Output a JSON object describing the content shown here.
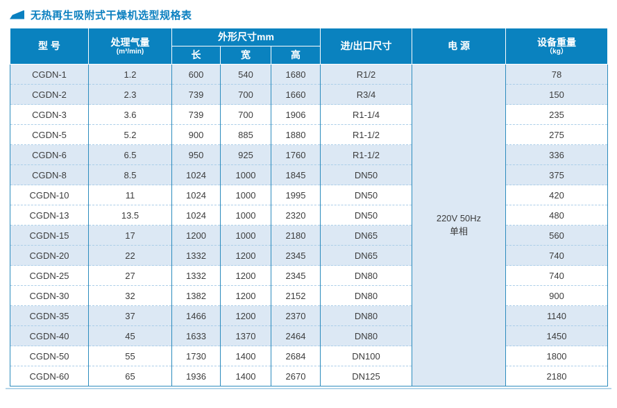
{
  "title": "无热再生吸附式干燥机选型规格表",
  "colors": {
    "header_bg": "#0a82bf",
    "row_alt_bg": "#dce8f4",
    "grid_line": "#2b8bbd",
    "dashed_line": "#a9cde8",
    "title_accent": "#0c80c0"
  },
  "table": {
    "headers": {
      "model": "型 号",
      "flow": "处理气量",
      "flow_unit": "(m³/min)",
      "dims": "外形尺寸mm",
      "length": "长",
      "width": "宽",
      "height": "高",
      "port": "进/出口尺寸",
      "power": "电 源",
      "weight": "设备重量",
      "weight_unit": "（kg）"
    },
    "power": {
      "line1": "220V 50Hz",
      "line2": "单相"
    },
    "rows": [
      {
        "model": "CGDN-1",
        "flow": "1.2",
        "length": "600",
        "width": "540",
        "height": "1680",
        "port": "R1/2",
        "weight": "78"
      },
      {
        "model": "CGDN-2",
        "flow": "2.3",
        "length": "739",
        "width": "700",
        "height": "1660",
        "port": "R3/4",
        "weight": "150"
      },
      {
        "model": "CGDN-3",
        "flow": "3.6",
        "length": "739",
        "width": "700",
        "height": "1906",
        "port": "R1-1/4",
        "weight": "235"
      },
      {
        "model": "CGDN-5",
        "flow": "5.2",
        "length": "900",
        "width": "885",
        "height": "1880",
        "port": "R1-1/2",
        "weight": "275"
      },
      {
        "model": "CGDN-6",
        "flow": "6.5",
        "length": "950",
        "width": "925",
        "height": "1760",
        "port": "R1-1/2",
        "weight": "336"
      },
      {
        "model": "CGDN-8",
        "flow": "8.5",
        "length": "1024",
        "width": "1000",
        "height": "1845",
        "port": "DN50",
        "weight": "375"
      },
      {
        "model": "CGDN-10",
        "flow": "11",
        "length": "1024",
        "width": "1000",
        "height": "1995",
        "port": "DN50",
        "weight": "420"
      },
      {
        "model": "CGDN-13",
        "flow": "13.5",
        "length": "1024",
        "width": "1000",
        "height": "2320",
        "port": "DN50",
        "weight": "480"
      },
      {
        "model": "CGDN-15",
        "flow": "17",
        "length": "1200",
        "width": "1000",
        "height": "2180",
        "port": "DN65",
        "weight": "560"
      },
      {
        "model": "CGDN-20",
        "flow": "22",
        "length": "1332",
        "width": "1200",
        "height": "2345",
        "port": "DN65",
        "weight": "740"
      },
      {
        "model": "CGDN-25",
        "flow": "27",
        "length": "1332",
        "width": "1200",
        "height": "2345",
        "port": "DN80",
        "weight": "740"
      },
      {
        "model": "CGDN-30",
        "flow": "32",
        "length": "1382",
        "width": "1200",
        "height": "2152",
        "port": "DN80",
        "weight": "900"
      },
      {
        "model": "CGDN-35",
        "flow": "37",
        "length": "1466",
        "width": "1200",
        "height": "2370",
        "port": "DN80",
        "weight": "1140"
      },
      {
        "model": "CGDN-40",
        "flow": "45",
        "length": "1633",
        "width": "1370",
        "height": "2464",
        "port": "DN80",
        "weight": "1450"
      },
      {
        "model": "CGDN-50",
        "flow": "55",
        "length": "1730",
        "width": "1400",
        "height": "2684",
        "port": "DN100",
        "weight": "1800"
      },
      {
        "model": "CGDN-60",
        "flow": "65",
        "length": "1936",
        "width": "1400",
        "height": "2670",
        "port": "DN125",
        "weight": "2180"
      }
    ]
  }
}
